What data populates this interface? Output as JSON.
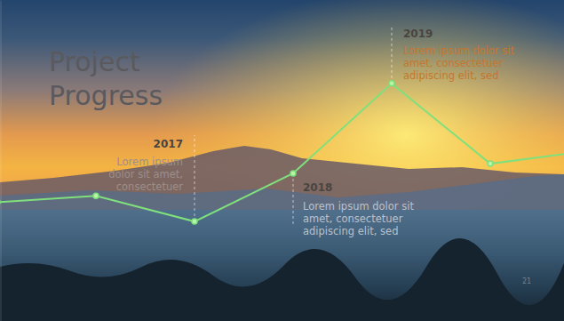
{
  "chart_data": {
    "type": "line",
    "title": "Project Progress",
    "categories": [
      null,
      null,
      "2017",
      "2018",
      "2019",
      null,
      null
    ],
    "values": [
      37,
      39,
      31,
      46,
      74,
      49,
      53
    ],
    "ylim": [
      0,
      100
    ],
    "color": "#7fe07c",
    "marker": "circle",
    "tick_labels": false,
    "annotations": [
      null,
      null,
      [
        "Lorem ipsum",
        "dolor sit amet,",
        "consectetuer"
      ],
      [
        "Lorem ipsum dolor sit",
        "amet, consectetuer",
        "adipiscing elit, sed"
      ],
      [
        "Lorem ipsum dolor sit",
        "amet, consectetuer",
        "adipiscing elit, sed"
      ],
      null,
      null
    ],
    "page_number": "21"
  }
}
